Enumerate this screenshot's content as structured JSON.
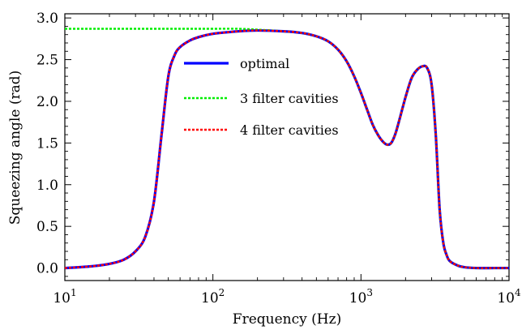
{
  "chart_data": {
    "type": "line",
    "xlabel": "Frequency (Hz)",
    "ylabel": "Squeezing angle (rad)",
    "xscale": "log",
    "xlim": [
      10,
      10000
    ],
    "ylim": [
      -0.15,
      3.05
    ],
    "grid": false,
    "legend_position": "top-center",
    "x_ticks": [
      {
        "value": 10,
        "base": "10",
        "exp": "1"
      },
      {
        "value": 100,
        "base": "10",
        "exp": "2"
      },
      {
        "value": 1000,
        "base": "10",
        "exp": "3"
      },
      {
        "value": 10000,
        "base": "10",
        "exp": "4"
      }
    ],
    "y_ticks": [
      {
        "value": 0.0,
        "label": "0.0"
      },
      {
        "value": 0.5,
        "label": "0.5"
      },
      {
        "value": 1.0,
        "label": "1.0"
      },
      {
        "value": 1.5,
        "label": "1.5"
      },
      {
        "value": 2.0,
        "label": "2.0"
      },
      {
        "value": 2.5,
        "label": "2.5"
      },
      {
        "value": 3.0,
        "label": "3.0"
      }
    ],
    "series": [
      {
        "name": "optimal",
        "color": "#0000ff",
        "style": "solid",
        "x": [
          10,
          15,
          20,
          25,
          30,
          35,
          40,
          45,
          50,
          55,
          60,
          70,
          80,
          100,
          150,
          200,
          300,
          400,
          500,
          600,
          700,
          800,
          900,
          1000,
          1100,
          1200,
          1300,
          1400,
          1500,
          1600,
          1700,
          1800,
          2000,
          2200,
          2400,
          2600,
          2800,
          3000,
          3200,
          3400,
          3600,
          3800,
          4000,
          4500,
          5000,
          6000,
          8000,
          10000
        ],
        "y": [
          0.0,
          0.02,
          0.05,
          0.1,
          0.2,
          0.38,
          0.8,
          1.6,
          2.3,
          2.55,
          2.65,
          2.73,
          2.77,
          2.81,
          2.84,
          2.85,
          2.84,
          2.82,
          2.78,
          2.72,
          2.62,
          2.48,
          2.3,
          2.1,
          1.9,
          1.72,
          1.6,
          1.52,
          1.48,
          1.5,
          1.6,
          1.75,
          2.05,
          2.28,
          2.38,
          2.42,
          2.4,
          2.2,
          1.6,
          0.7,
          0.3,
          0.15,
          0.08,
          0.03,
          0.01,
          0.0,
          0.0,
          0.0
        ]
      },
      {
        "name": "3 filter cavities",
        "color": "#00ee00",
        "style": "dashed",
        "x": [
          10,
          15,
          20,
          25,
          30,
          35,
          40,
          45,
          50,
          55,
          60,
          70,
          80,
          100,
          150,
          200,
          300,
          400,
          500,
          600,
          700,
          800,
          900,
          1000,
          1100,
          1200,
          1300,
          1400,
          1500,
          1600,
          1700,
          1800,
          2000,
          2200,
          2400,
          2600,
          2800,
          3000,
          3200,
          3400,
          3600,
          3800,
          4000,
          4500,
          5000,
          6000,
          8000,
          10000
        ],
        "y": [
          2.87,
          2.87,
          2.87,
          2.87,
          2.87,
          2.87,
          2.87,
          2.87,
          2.87,
          2.87,
          2.87,
          2.87,
          2.87,
          2.87,
          2.87,
          2.86,
          2.84,
          2.82,
          2.78,
          2.72,
          2.62,
          2.48,
          2.3,
          2.1,
          1.9,
          1.72,
          1.6,
          1.52,
          1.48,
          1.5,
          1.6,
          1.75,
          2.05,
          2.28,
          2.38,
          2.42,
          2.4,
          2.2,
          1.6,
          0.7,
          0.3,
          0.15,
          0.08,
          0.03,
          0.01,
          0.0,
          0.0,
          0.0
        ]
      },
      {
        "name": "4 filter cavities",
        "color": "#ff0000",
        "style": "dashed",
        "x": [
          10,
          15,
          20,
          25,
          30,
          35,
          40,
          45,
          50,
          55,
          60,
          70,
          80,
          100,
          150,
          200,
          300,
          400,
          500,
          600,
          700,
          800,
          900,
          1000,
          1100,
          1200,
          1300,
          1400,
          1500,
          1600,
          1700,
          1800,
          2000,
          2200,
          2400,
          2600,
          2800,
          3000,
          3200,
          3400,
          3600,
          3800,
          4000,
          4500,
          5000,
          6000,
          8000,
          10000
        ],
        "y": [
          0.0,
          0.02,
          0.05,
          0.1,
          0.2,
          0.38,
          0.8,
          1.6,
          2.3,
          2.55,
          2.65,
          2.73,
          2.77,
          2.81,
          2.84,
          2.85,
          2.84,
          2.82,
          2.78,
          2.72,
          2.62,
          2.48,
          2.3,
          2.1,
          1.9,
          1.72,
          1.6,
          1.52,
          1.48,
          1.5,
          1.6,
          1.75,
          2.05,
          2.28,
          2.38,
          2.42,
          2.4,
          2.2,
          1.6,
          0.7,
          0.3,
          0.15,
          0.08,
          0.03,
          0.01,
          0.0,
          0.0,
          0.0
        ]
      }
    ]
  }
}
